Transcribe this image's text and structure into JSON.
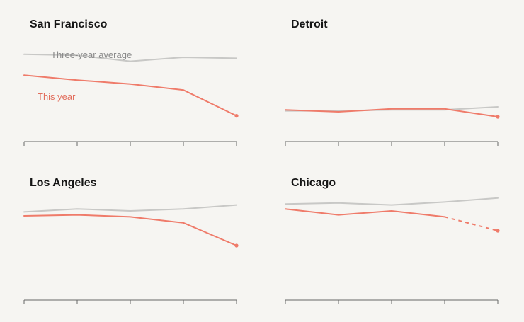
{
  "colors": {
    "background": "#f6f5f2",
    "avg": "#c8c8c6",
    "current": "#ef7b6a",
    "axis": "#666666",
    "avg_label": "#8a8a8a",
    "current_label": "#e26d5c",
    "title": "#151515"
  },
  "chart_data": [
    {
      "type": "line",
      "title": "San Francisco",
      "x": [
        1,
        2,
        3,
        4,
        5
      ],
      "ylim": [
        0,
        100
      ],
      "series": [
        {
          "name": "Three-year average",
          "values": [
            88,
            87,
            81,
            85,
            84
          ]
        },
        {
          "name": "This year",
          "values": [
            67,
            62,
            58,
            52,
            26
          ]
        }
      ],
      "annotations": [
        "Three-year average",
        "This year"
      ]
    },
    {
      "type": "line",
      "title": "Detroit",
      "x": [
        1,
        2,
        3,
        4,
        5
      ],
      "ylim": [
        0,
        100
      ],
      "series": [
        {
          "values": [
            31,
            31,
            32,
            32,
            35
          ]
        },
        {
          "values": [
            32,
            30,
            33,
            33,
            25
          ]
        }
      ]
    },
    {
      "type": "line",
      "title": "Los Angeles",
      "x": [
        1,
        2,
        3,
        4,
        5
      ],
      "ylim": [
        0,
        100
      ],
      "series": [
        {
          "values": [
            89,
            92,
            90,
            92,
            96
          ]
        },
        {
          "values": [
            85,
            86,
            84,
            78,
            55
          ]
        }
      ]
    },
    {
      "type": "line",
      "title": "Chicago",
      "x": [
        1,
        2,
        3,
        4,
        5
      ],
      "ylim": [
        0,
        100
      ],
      "series": [
        {
          "values": [
            97,
            98,
            96,
            99,
            103
          ]
        },
        {
          "values": [
            92,
            86,
            90,
            84,
            70
          ],
          "dashed_from": 4
        }
      ]
    }
  ]
}
